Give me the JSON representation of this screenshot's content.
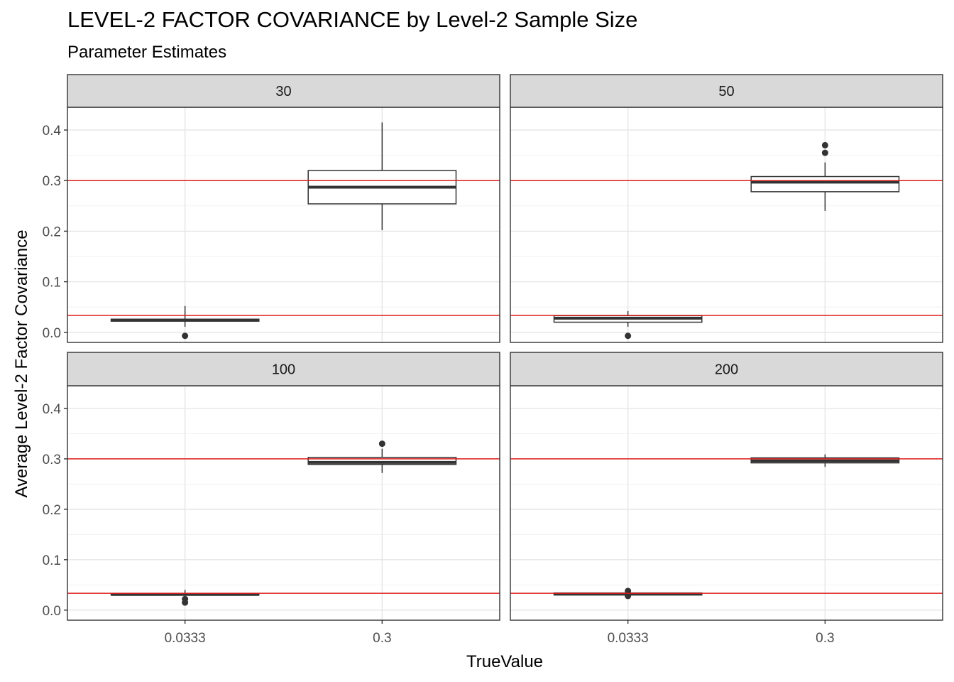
{
  "chart_data": {
    "type": "boxplot",
    "title": "LEVEL-2 FACTOR COVARIANCE by Level-2 Sample Size",
    "subtitle": "Parameter Estimates",
    "xlabel": "TrueValue",
    "ylabel": "Average Level-2 Factor Covariance",
    "categories": [
      "0.0333",
      "0.3"
    ],
    "yticks": [
      "0.0",
      "0.1",
      "0.2",
      "0.3",
      "0.4"
    ],
    "ylim": [
      -0.02,
      0.445
    ],
    "reference_lines": [
      0.0333,
      0.3
    ],
    "reference_color": "#dd1c1c",
    "strip_fill": "#d9d9d9",
    "grid": true,
    "facets": [
      {
        "label": "30",
        "boxes": [
          {
            "category": "0.0333",
            "min": 0.011,
            "q1": 0.022,
            "median": 0.024,
            "q3": 0.026,
            "max": 0.052,
            "outliers": [
              -0.007
            ]
          },
          {
            "category": "0.3",
            "min": 0.202,
            "q1": 0.254,
            "median": 0.287,
            "q3": 0.32,
            "max": 0.415,
            "outliers": []
          }
        ]
      },
      {
        "label": "50",
        "boxes": [
          {
            "category": "0.0333",
            "min": 0.011,
            "q1": 0.02,
            "median": 0.028,
            "q3": 0.033,
            "max": 0.042,
            "outliers": [
              -0.007
            ]
          },
          {
            "category": "0.3",
            "min": 0.24,
            "q1": 0.278,
            "median": 0.297,
            "q3": 0.308,
            "max": 0.336,
            "outliers": [
              0.355,
              0.37
            ]
          }
        ]
      },
      {
        "label": "100",
        "boxes": [
          {
            "category": "0.0333",
            "min": 0.028,
            "q1": 0.03,
            "median": 0.031,
            "q3": 0.033,
            "max": 0.04,
            "outliers": [
              0.015,
              0.022
            ]
          },
          {
            "category": "0.3",
            "min": 0.272,
            "q1": 0.289,
            "median": 0.293,
            "q3": 0.303,
            "max": 0.32,
            "outliers": [
              0.33
            ]
          }
        ]
      },
      {
        "label": "200",
        "boxes": [
          {
            "category": "0.0333",
            "min": 0.029,
            "q1": 0.03,
            "median": 0.032,
            "q3": 0.034,
            "max": 0.036,
            "outliers": [
              0.028,
              0.038
            ]
          },
          {
            "category": "0.3",
            "min": 0.284,
            "q1": 0.292,
            "median": 0.296,
            "q3": 0.302,
            "max": 0.309,
            "outliers": []
          }
        ]
      }
    ]
  }
}
